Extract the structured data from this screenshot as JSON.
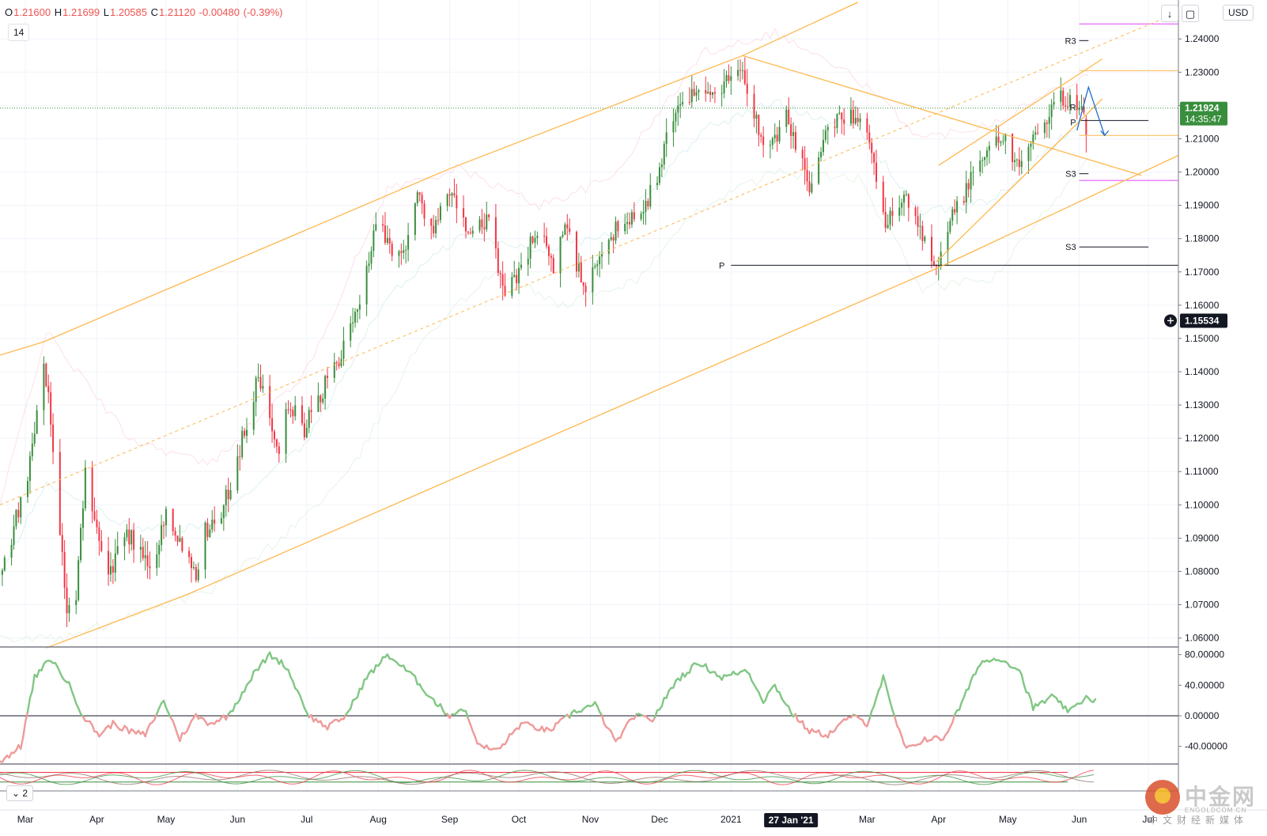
{
  "header": {
    "open_label": "O",
    "open_value": "1.21600",
    "high_label": "H",
    "high_value": "1.21699",
    "low_label": "L",
    "low_value": "1.20585",
    "close_label": "C",
    "close_value": "1.21120",
    "change": "-0.00480",
    "change_pct": "(-0.39%)",
    "length_value": "14",
    "currency": "USD",
    "download_icon": "↓",
    "fullscreen_icon": "▢"
  },
  "price_badges": {
    "last_price": "1.21924",
    "countdown": "14:35:47",
    "crosshair_price": "1.15534"
  },
  "time_badge": "27 Jan '21",
  "oscillator_pill": {
    "chevron": "⌄",
    "value": "2"
  },
  "pivot_labels": {
    "r3_upper": "R3",
    "p_upper": "P",
    "s3_mid": "S3",
    "s3_low": "S3",
    "p_low": "P",
    "r_near": "R"
  },
  "watermark": {
    "brand": "中金网",
    "url": "ENGOLDCOM.CN",
    "slogan": "中文财经新媒体"
  },
  "colors": {
    "up": "#388e3c",
    "down": "#f23645",
    "orange": "#ffb74d",
    "magenta": "#e040fb",
    "pivot": "#131722",
    "osc_up": "#81c784",
    "osc_down": "#ef9a9a",
    "last_price_bg": "#388e3c",
    "forecast": "#1e6cc8"
  },
  "chart_data": {
    "type": "candlestick",
    "symbol_quote": "USD",
    "x_tick_labels": [
      "Mar",
      "Apr",
      "May",
      "Jun",
      "Jul",
      "Aug",
      "Sep",
      "Oct",
      "Nov",
      "Dec",
      "2021",
      "Mar",
      "Apr",
      "May",
      "Jun",
      "Jul"
    ],
    "x_ticks": [
      {
        "label": "Mar",
        "date": "2020-03-01"
      },
      {
        "label": "Apr",
        "date": "2020-04-01"
      },
      {
        "label": "May",
        "date": "2020-05-01"
      },
      {
        "label": "Jun",
        "date": "2020-06-01"
      },
      {
        "label": "Jul",
        "date": "2020-07-01"
      },
      {
        "label": "Aug",
        "date": "2020-08-01"
      },
      {
        "label": "Sep",
        "date": "2020-09-01"
      },
      {
        "label": "Oct",
        "date": "2020-10-01"
      },
      {
        "label": "Nov",
        "date": "2020-11-01"
      },
      {
        "label": "Dec",
        "date": "2020-12-01"
      },
      {
        "label": "2021",
        "date": "2021-01-01"
      },
      {
        "label": "Mar",
        "date": "2021-03-01"
      },
      {
        "label": "Apr",
        "date": "2021-04-01"
      },
      {
        "label": "May",
        "date": "2021-05-01"
      },
      {
        "label": "Jun",
        "date": "2021-06-01"
      },
      {
        "label": "Jul",
        "date": "2021-07-01"
      }
    ],
    "y_tick_labels": [
      "1.24000",
      "1.23000",
      "1.22000",
      "1.21000",
      "1.20000",
      "1.19000",
      "1.18000",
      "1.17000",
      "1.16000",
      "1.15000",
      "1.14000",
      "1.13000",
      "1.12000",
      "1.11000",
      "1.10000",
      "1.09000",
      "1.08000",
      "1.07000",
      "1.06000"
    ],
    "y_ticks": [
      1.24,
      1.23,
      1.22,
      1.21,
      1.2,
      1.19,
      1.18,
      1.17,
      1.16,
      1.15,
      1.14,
      1.13,
      1.12,
      1.11,
      1.1,
      1.09,
      1.08,
      1.07,
      1.06
    ],
    "ylim": [
      1.0573,
      1.2517
    ],
    "xlim": [
      "2020-02-19",
      "2021-07-14"
    ],
    "price_anchors": [
      [
        "2020-02-20",
        1.079
      ],
      [
        "2020-03-03",
        1.113
      ],
      [
        "2020-03-09",
        1.145
      ],
      [
        "2020-03-13",
        1.118
      ],
      [
        "2020-03-19",
        1.068
      ],
      [
        "2020-03-23",
        1.072
      ],
      [
        "2020-03-27",
        1.11
      ],
      [
        "2020-04-06",
        1.08
      ],
      [
        "2020-04-15",
        1.091
      ],
      [
        "2020-04-24",
        1.08
      ],
      [
        "2020-05-01",
        1.098
      ],
      [
        "2020-05-14",
        1.08
      ],
      [
        "2020-05-18",
        1.092
      ],
      [
        "2020-05-26",
        1.099
      ],
      [
        "2020-06-10",
        1.138
      ],
      [
        "2020-06-19",
        1.118
      ],
      [
        "2020-06-23",
        1.13
      ],
      [
        "2020-06-30",
        1.123
      ],
      [
        "2020-07-21",
        1.153
      ],
      [
        "2020-07-31",
        1.184
      ],
      [
        "2020-08-11",
        1.174
      ],
      [
        "2020-08-18",
        1.193
      ],
      [
        "2020-08-25",
        1.182
      ],
      [
        "2020-09-01",
        1.194
      ],
      [
        "2020-09-10",
        1.181
      ],
      [
        "2020-09-18",
        1.185
      ],
      [
        "2020-09-25",
        1.162
      ],
      [
        "2020-10-09",
        1.183
      ],
      [
        "2020-10-16",
        1.171
      ],
      [
        "2020-10-21",
        1.185
      ],
      [
        "2020-10-30",
        1.163
      ],
      [
        "2020-11-09",
        1.181
      ],
      [
        "2020-11-20",
        1.187
      ],
      [
        "2020-11-30",
        1.196
      ],
      [
        "2020-12-04",
        1.213
      ],
      [
        "2020-12-17",
        1.227
      ],
      [
        "2020-12-21",
        1.222
      ],
      [
        "2021-01-06",
        1.232
      ],
      [
        "2021-01-12",
        1.215
      ],
      [
        "2021-01-18",
        1.207
      ],
      [
        "2021-01-25",
        1.216
      ],
      [
        "2021-02-04",
        1.196
      ],
      [
        "2021-02-12",
        1.213
      ],
      [
        "2021-02-25",
        1.218
      ],
      [
        "2021-03-03",
        1.205
      ],
      [
        "2021-03-09",
        1.185
      ],
      [
        "2021-03-18",
        1.192
      ],
      [
        "2021-03-31",
        1.173
      ],
      [
        "2021-04-08",
        1.188
      ],
      [
        "2021-04-19",
        1.203
      ],
      [
        "2021-04-29",
        1.212
      ],
      [
        "2021-05-05",
        1.201
      ],
      [
        "2021-05-14",
        1.214
      ],
      [
        "2021-05-24",
        1.222
      ],
      [
        "2021-06-01",
        1.221
      ],
      [
        "2021-06-04",
        1.2159
      ]
    ],
    "last_candle": {
      "open": 1.216,
      "high": 1.21699,
      "low": 1.20585,
      "close": 1.2112,
      "change": -0.0048,
      "change_pct": -0.39
    },
    "last_price": 1.21924,
    "crosshair_price": 1.15534,
    "crosshair_date": "2021-01-27",
    "trendlines": [
      {
        "name": "upper-channel",
        "color": "orange",
        "style": "solid",
        "points": [
          [
            "2020-02-19",
            1.145
          ],
          [
            "2020-03-09",
            1.149
          ],
          [
            "2020-09-01",
            1.201
          ],
          [
            "2021-01-06",
            1.235
          ]
        ]
      },
      {
        "name": "upper-channel-extension",
        "color": "orange",
        "style": "solid",
        "points": [
          [
            "2021-01-06",
            1.235
          ],
          [
            "2021-02-25",
            1.251
          ]
        ]
      },
      {
        "name": "mid-channel",
        "color": "orange",
        "style": "dashed",
        "points": [
          [
            "2020-02-19",
            1.1
          ],
          [
            "2021-07-14",
            1.248
          ]
        ]
      },
      {
        "name": "lower-channel",
        "color": "orange",
        "style": "solid",
        "points": [
          [
            "2020-03-10",
            1.057
          ],
          [
            "2020-05-10",
            1.073
          ],
          [
            "2021-03-31",
            1.171
          ],
          [
            "2021-07-14",
            1.205
          ]
        ]
      },
      {
        "name": "descending-resistance",
        "color": "orange",
        "style": "solid",
        "points": [
          [
            "2021-01-06",
            1.235
          ],
          [
            "2021-06-28",
            1.199
          ]
        ]
      },
      {
        "name": "rising-wedge-top",
        "color": "orange",
        "style": "solid",
        "points": [
          [
            "2021-04-01",
            1.202
          ],
          [
            "2021-06-11",
            1.234
          ]
        ]
      },
      {
        "name": "rising-wedge-bottom",
        "color": "orange",
        "style": "solid",
        "points": [
          [
            "2021-03-31",
            1.173
          ],
          [
            "2021-06-11",
            1.222
          ]
        ]
      }
    ],
    "horizontal_levels": [
      {
        "name": "magenta-top",
        "value": 1.2445,
        "color": "magenta",
        "from": "2021-06-01",
        "to": "2021-07-14"
      },
      {
        "name": "r3-upper",
        "value": 1.2395,
        "color": "pivot",
        "from": "2021-06-01",
        "to": "2021-06-05",
        "label": "R3"
      },
      {
        "name": "orange-top",
        "value": 1.2305,
        "color": "orange",
        "from": "2021-06-01",
        "to": "2021-07-14"
      },
      {
        "name": "p-upper",
        "value": 1.2155,
        "color": "pivot",
        "from": "2021-06-01",
        "to": "2021-07-01",
        "label": "P"
      },
      {
        "name": "orange-mid",
        "value": 1.211,
        "color": "orange",
        "from": "2021-06-01",
        "to": "2021-07-14"
      },
      {
        "name": "s3-mid",
        "value": 1.1995,
        "color": "pivot",
        "from": "2021-06-01",
        "to": "2021-06-05",
        "label": "S3"
      },
      {
        "name": "magenta-low",
        "value": 1.1975,
        "color": "magenta",
        "from": "2021-06-01",
        "to": "2021-07-14"
      },
      {
        "name": "s3-low",
        "value": 1.1775,
        "color": "pivot",
        "from": "2021-06-01",
        "to": "2021-07-01",
        "label": "S3"
      },
      {
        "name": "p-low",
        "value": 1.172,
        "color": "pivot",
        "from": "2021-01-01",
        "to": "2021-07-14",
        "label": "P"
      },
      {
        "name": "last-price",
        "value": 1.21924,
        "color": "up",
        "from": "2020-02-19",
        "to": "2021-07-14",
        "style": "dotted"
      }
    ],
    "forecast_path": [
      [
        "2021-05-31",
        1.2125
      ],
      [
        "2021-06-05",
        1.2255
      ],
      [
        "2021-06-12",
        1.211
      ]
    ],
    "oscillator": {
      "name": "momentum",
      "y_tick_labels": [
        "80.00000",
        "40.00000",
        "0.00000",
        "-40.00000"
      ],
      "y_ticks": [
        80,
        40,
        0,
        -40
      ],
      "ylim": [
        -62,
        90
      ],
      "zero_line": 0,
      "anchors": [
        [
          "2020-02-19",
          -60
        ],
        [
          "2020-02-28",
          -40
        ],
        [
          "2020-03-05",
          50
        ],
        [
          "2020-03-12",
          75
        ],
        [
          "2020-03-20",
          40
        ],
        [
          "2020-03-26",
          0
        ],
        [
          "2020-04-02",
          -25
        ],
        [
          "2020-04-08",
          -10
        ],
        [
          "2020-04-15",
          -20
        ],
        [
          "2020-04-22",
          -25
        ],
        [
          "2020-04-30",
          20
        ],
        [
          "2020-05-07",
          -30
        ],
        [
          "2020-05-14",
          0
        ],
        [
          "2020-05-20",
          -10
        ],
        [
          "2020-05-28",
          0
        ],
        [
          "2020-06-08",
          55
        ],
        [
          "2020-06-15",
          80
        ],
        [
          "2020-06-22",
          65
        ],
        [
          "2020-07-02",
          0
        ],
        [
          "2020-07-10",
          -15
        ],
        [
          "2020-07-18",
          0
        ],
        [
          "2020-07-27",
          50
        ],
        [
          "2020-08-05",
          80
        ],
        [
          "2020-08-15",
          55
        ],
        [
          "2020-08-25",
          20
        ],
        [
          "2020-09-01",
          0
        ],
        [
          "2020-09-07",
          10
        ],
        [
          "2020-09-14",
          -40
        ],
        [
          "2020-09-22",
          -45
        ],
        [
          "2020-10-02",
          -10
        ],
        [
          "2020-10-14",
          -20
        ],
        [
          "2020-10-25",
          5
        ],
        [
          "2020-11-03",
          15
        ],
        [
          "2020-11-12",
          -35
        ],
        [
          "2020-11-20",
          0
        ],
        [
          "2020-11-28",
          -5
        ],
        [
          "2020-12-08",
          45
        ],
        [
          "2020-12-18",
          70
        ],
        [
          "2020-12-28",
          50
        ],
        [
          "2021-01-08",
          60
        ],
        [
          "2021-01-15",
          20
        ],
        [
          "2021-01-20",
          40
        ],
        [
          "2021-01-27",
          5
        ],
        [
          "2021-02-04",
          -20
        ],
        [
          "2021-02-12",
          -25
        ],
        [
          "2021-02-22",
          0
        ],
        [
          "2021-03-01",
          -10
        ],
        [
          "2021-03-08",
          50
        ],
        [
          "2021-03-12",
          5
        ],
        [
          "2021-03-18",
          -45
        ],
        [
          "2021-03-26",
          -30
        ],
        [
          "2021-04-03",
          -30
        ],
        [
          "2021-04-10",
          10
        ],
        [
          "2021-04-19",
          70
        ],
        [
          "2021-04-28",
          75
        ],
        [
          "2021-05-06",
          60
        ],
        [
          "2021-05-12",
          10
        ],
        [
          "2021-05-20",
          25
        ],
        [
          "2021-05-28",
          5
        ],
        [
          "2021-06-04",
          25
        ],
        [
          "2021-06-08",
          20
        ]
      ]
    },
    "oscillator2": {
      "name": "multi-line",
      "series": [
        {
          "color": "#f23645",
          "anchors": [
            [
              "2020-02-19",
              0.2
            ],
            [
              "2021-06-08",
              0.2
            ]
          ]
        },
        {
          "color": "#388e3c",
          "anchors": [
            [
              "2020-02-19",
              0.7
            ],
            [
              "2021-06-08",
              0.7
            ]
          ]
        }
      ]
    },
    "bollinger": {
      "upper": [
        [
          "2020-02-19",
          1.1
        ],
        [
          "2020-03-10",
          1.152
        ],
        [
          "2020-04-15",
          1.12
        ],
        [
          "2020-05-20",
          1.112
        ],
        [
          "2020-07-01",
          1.14
        ],
        [
          "2020-08-05",
          1.195
        ],
        [
          "2020-09-05",
          1.201
        ],
        [
          "2020-10-10",
          1.19
        ],
        [
          "2020-11-10",
          1.198
        ],
        [
          "2020-12-20",
          1.236
        ],
        [
          "2021-01-20",
          1.242
        ],
        [
          "2021-02-25",
          1.228
        ],
        [
          "2021-03-25",
          1.21
        ],
        [
          "2021-04-25",
          1.215
        ],
        [
          "2021-06-05",
          1.23
        ]
      ],
      "lower": [
        [
          "2020-02-19",
          1.06
        ],
        [
          "2020-03-20",
          1.06
        ],
        [
          "2020-04-15",
          1.067
        ],
        [
          "2020-05-20",
          1.074
        ],
        [
          "2020-06-20",
          1.09
        ],
        [
          "2020-07-20",
          1.11
        ],
        [
          "2020-08-20",
          1.15
        ],
        [
          "2020-09-20",
          1.17
        ],
        [
          "2020-10-20",
          1.16
        ],
        [
          "2020-11-20",
          1.167
        ],
        [
          "2020-12-20",
          1.19
        ],
        [
          "2021-01-20",
          1.2
        ],
        [
          "2021-02-25",
          1.198
        ],
        [
          "2021-03-25",
          1.165
        ],
        [
          "2021-04-25",
          1.168
        ],
        [
          "2021-06-05",
          1.205
        ]
      ]
    }
  }
}
